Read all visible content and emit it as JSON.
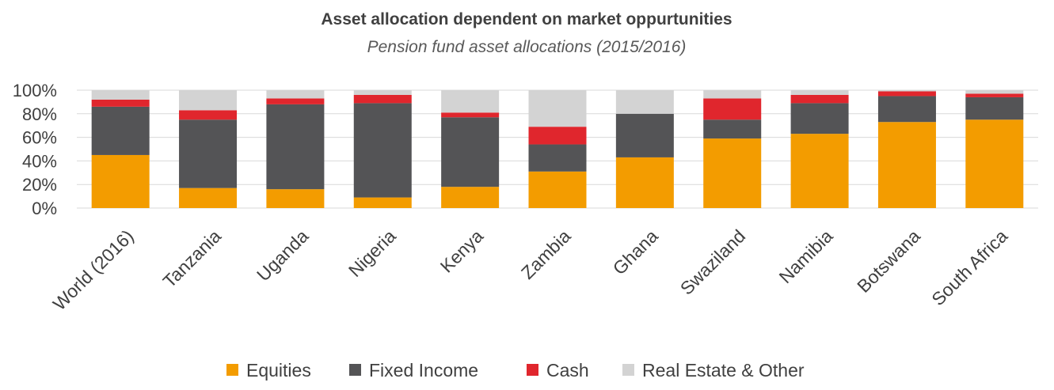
{
  "chart_data": {
    "type": "bar",
    "stacked": true,
    "title": "Asset allocation dependent on market oppurtunities",
    "subtitle": "Pension fund asset allocations (2015/2016)",
    "xlabel": "",
    "ylabel": "",
    "ylim": [
      0,
      100
    ],
    "yticks": [
      "0%",
      "20%",
      "40%",
      "60%",
      "80%",
      "100%"
    ],
    "grid": true,
    "legend_position": "bottom",
    "categories": [
      "World (2016)",
      "Tanzania",
      "Uganda",
      "Nigeria",
      "Kenya",
      "Zambia",
      "Ghana",
      "Swaziland",
      "Namibia",
      "Botswana",
      "South Africa"
    ],
    "series": [
      {
        "name": "Equities",
        "color": "#f39c00",
        "values": [
          45,
          17,
          16,
          9,
          18,
          31,
          43,
          59,
          63,
          73,
          75
        ]
      },
      {
        "name": "Fixed Income",
        "color": "#545456",
        "values": [
          41,
          58,
          72,
          80,
          59,
          23,
          37,
          16,
          26,
          22,
          19
        ]
      },
      {
        "name": "Cash",
        "color": "#e0262d",
        "values": [
          6,
          8,
          5,
          7,
          4,
          15,
          0,
          18,
          7,
          4,
          3
        ]
      },
      {
        "name": "Real Estate & Other",
        "color": "#d3d3d3",
        "values": [
          8,
          17,
          7,
          4,
          19,
          31,
          20,
          7,
          4,
          1,
          3
        ]
      }
    ]
  }
}
